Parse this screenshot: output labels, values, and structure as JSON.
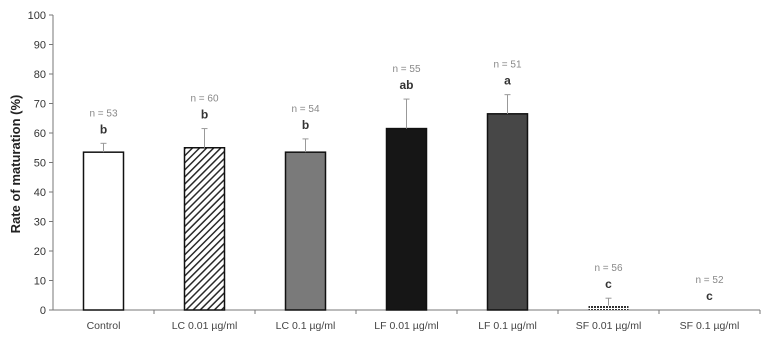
{
  "chart_data": {
    "type": "bar",
    "ylabel": "Rate of maturation (%)",
    "ylim": [
      0,
      100
    ],
    "yticks": [
      0,
      10,
      20,
      30,
      40,
      50,
      60,
      70,
      80,
      90,
      100
    ],
    "categories": [
      "Control",
      "LC 0.01 µg/ml",
      "LC 0.1 µg/ml",
      "LF 0.01 µg/ml",
      "LF 0.1 µg/ml",
      "SF 0.01 µg/ml",
      "SF 0.1 µg/ml"
    ],
    "values": [
      53.5,
      55,
      53.5,
      61.5,
      66.5,
      1.5,
      0
    ],
    "errors": [
      3,
      6.5,
      4.5,
      10,
      6.5,
      2.5,
      0
    ],
    "n_labels": [
      "n = 53",
      "n = 60",
      "n = 54",
      "n = 55",
      "n = 51",
      "n = 56",
      "n = 52"
    ],
    "significance": [
      "b",
      "b",
      "b",
      "ab",
      "a",
      "c",
      "c"
    ],
    "bar_styles": [
      "white",
      "hatched",
      "gray",
      "black",
      "dark-gray",
      "dotted",
      "none"
    ],
    "colors": {
      "axis": "#777777",
      "bar_border": "#111111",
      "white": "#ffffff",
      "hatch": "#2a2a2a",
      "gray": "#7a7a7a",
      "black": "#161616",
      "dark_gray": "#474747",
      "error_bar": "#999999"
    },
    "grid": false,
    "legend": "none"
  }
}
